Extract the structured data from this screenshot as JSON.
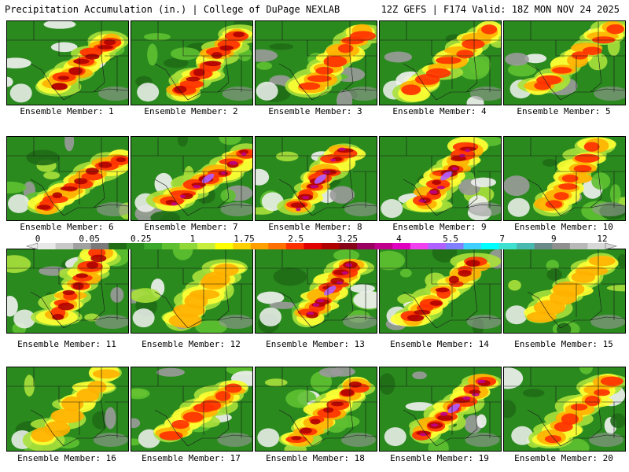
{
  "header": {
    "title": "Precipitation Accumulation (in.) | College of DuPage NEXLAB",
    "run_info": "12Z GEFS | F174 Valid: 18Z MON NOV 24 2025"
  },
  "panel_label_prefix": "Ensemble Member: ",
  "members": [
    {
      "id": 1,
      "label": "Ensemble Member: 1",
      "intensity": "high"
    },
    {
      "id": 2,
      "label": "Ensemble Member: 2",
      "intensity": "high"
    },
    {
      "id": 3,
      "label": "Ensemble Member: 3",
      "intensity": "moderate"
    },
    {
      "id": 4,
      "label": "Ensemble Member: 4",
      "intensity": "moderate"
    },
    {
      "id": 5,
      "label": "Ensemble Member: 5",
      "intensity": "moderate"
    },
    {
      "id": 6,
      "label": "Ensemble Member: 6",
      "intensity": "high"
    },
    {
      "id": 7,
      "label": "Ensemble Member: 7",
      "intensity": "very-high"
    },
    {
      "id": 8,
      "label": "Ensemble Member: 8",
      "intensity": "very-high"
    },
    {
      "id": 9,
      "label": "Ensemble Member: 9",
      "intensity": "very-high"
    },
    {
      "id": 10,
      "label": "Ensemble Member: 10",
      "intensity": "moderate"
    },
    {
      "id": 11,
      "label": "Ensemble Member: 11",
      "intensity": "high"
    },
    {
      "id": 12,
      "label": "Ensemble Member: 12",
      "intensity": "low"
    },
    {
      "id": 13,
      "label": "Ensemble Member: 13",
      "intensity": "very-high"
    },
    {
      "id": 14,
      "label": "Ensemble Member: 14",
      "intensity": "high"
    },
    {
      "id": 15,
      "label": "Ensemble Member: 15",
      "intensity": "low"
    },
    {
      "id": 16,
      "label": "Ensemble Member: 16",
      "intensity": "low"
    },
    {
      "id": 17,
      "label": "Ensemble Member: 17",
      "intensity": "moderate"
    },
    {
      "id": 18,
      "label": "Ensemble Member: 18",
      "intensity": "high"
    },
    {
      "id": 19,
      "label": "Ensemble Member: 19",
      "intensity": "very-high"
    },
    {
      "id": 20,
      "label": "Ensemble Member: 20",
      "intensity": "moderate"
    }
  ],
  "colorbar": {
    "tick_labels": [
      "0",
      "0.05",
      "0.25",
      "1",
      "1.75",
      "2.5",
      "3.25",
      "4",
      "5.5",
      "7",
      "9",
      "12"
    ],
    "colors": [
      "#e8e8e8",
      "#c8c8c8",
      "#a0a0a0",
      "#7a7a7a",
      "#1f6b16",
      "#2a8a1e",
      "#3aa62a",
      "#5ec030",
      "#8fd838",
      "#c8ee3c",
      "#ffff00",
      "#ffd000",
      "#ffa000",
      "#ff7000",
      "#ff3000",
      "#e00000",
      "#b00000",
      "#880018",
      "#9a0060",
      "#c0008a",
      "#e000c0",
      "#f040f0",
      "#b060ff",
      "#8080ff",
      "#40d0ff",
      "#00ffff",
      "#40e0d0",
      "#48b8b0",
      "#6a8a8a",
      "#909090",
      "#b8b8b8",
      "#d8d8d8"
    ]
  },
  "palette": {
    "green_dark": "#1f6b16",
    "green": "#2a8a1e",
    "green_light": "#5ec030",
    "lime": "#a8e03a",
    "yellow": "#ffff33",
    "orange": "#ffb000",
    "red": "#ff3000",
    "darkred": "#b00000",
    "magenta": "#c0008a",
    "purple": "#b060ff",
    "gray": "#9a9a9a",
    "white": "#f2f2f2"
  }
}
